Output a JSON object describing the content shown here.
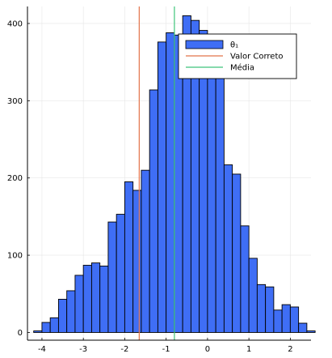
{
  "chart_data": {
    "type": "bar",
    "title": "",
    "xlabel": "",
    "ylabel": "",
    "xlim": [
      -4.35,
      2.5
    ],
    "ylim": [
      -10,
      422
    ],
    "xticks": [
      -4,
      -3,
      -2,
      -1,
      0,
      1,
      2
    ],
    "yticks": [
      0,
      100,
      200,
      300,
      400
    ],
    "grid": true,
    "legend_position": "top-right",
    "bin_width": 0.2,
    "bin_edges_start": -4.2,
    "counts": [
      2,
      13,
      19,
      43,
      54,
      74,
      87,
      90,
      86,
      143,
      153,
      195,
      184,
      210,
      314,
      376,
      388,
      385,
      410,
      404,
      391,
      338,
      345,
      217,
      205,
      138,
      96,
      62,
      59,
      29,
      36,
      33,
      12,
      2
    ],
    "series": [
      {
        "name": "θ₁",
        "kind": "histogram",
        "color": "#3f6ef5"
      },
      {
        "name": "Valor Correto",
        "kind": "vline",
        "x": -1.65,
        "color": "#e2734a"
      },
      {
        "name": "Média",
        "kind": "vline",
        "x": -0.8,
        "color": "#3ec47a"
      }
    ]
  }
}
